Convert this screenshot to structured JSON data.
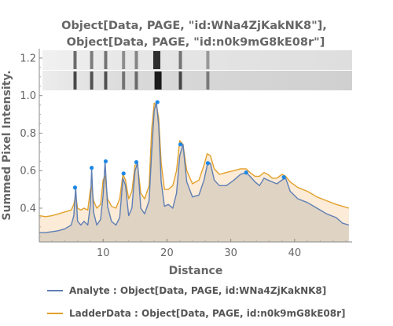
{
  "chart_data": {
    "type": "area",
    "title_lines": [
      "Object[Data, PAGE, \"id:WNa4ZjKakNK8\"],",
      "Object[Data, PAGE, \"id:n0k9mG8kE08r\"]"
    ],
    "xlabel": "Distance",
    "ylabel": "Summed Pixel Intensity.",
    "xlim": [
      0,
      49
    ],
    "ylim": [
      0.22,
      1.25
    ],
    "xticks": [
      10,
      20,
      30,
      40
    ],
    "yticks": [
      0.4,
      0.6,
      0.8,
      1.0,
      1.2
    ],
    "grid": false,
    "legend_position": "bottom",
    "series": [
      {
        "name": "Analyte : Object[Data, PAGE, id:WNa4ZjKakNK8]",
        "color": "#5f7fb5",
        "fill": "#d9cfbf",
        "x": [
          0,
          1,
          2,
          3,
          4,
          5,
          5.4,
          5.7,
          6,
          6.5,
          7,
          7.6,
          8,
          8.2,
          8.5,
          9,
          9.6,
          10,
          10.3,
          10.7,
          11.3,
          12,
          12.6,
          13.1,
          13.5,
          14,
          14.5,
          15.0,
          15.4,
          15.9,
          16.5,
          17.2,
          17.6,
          18.0,
          18.35,
          18.7,
          19.1,
          19.6,
          20.2,
          20.9,
          21.5,
          22.0,
          22.5,
          23.1,
          24.0,
          25.0,
          25.8,
          26.3,
          26.8,
          27.4,
          28.2,
          29.3,
          30.5,
          31.5,
          32.4,
          33.0,
          33.8,
          34.5,
          35.2,
          35.8,
          36.5,
          37.2,
          38.0,
          38.6,
          39.3,
          40.5,
          42,
          43.5,
          45,
          46.5,
          47.5,
          48.5
        ],
        "y": [
          0.27,
          0.27,
          0.275,
          0.28,
          0.29,
          0.31,
          0.36,
          0.51,
          0.33,
          0.31,
          0.33,
          0.31,
          0.42,
          0.61,
          0.38,
          0.31,
          0.34,
          0.47,
          0.65,
          0.41,
          0.33,
          0.31,
          0.35,
          0.56,
          0.52,
          0.36,
          0.4,
          0.6,
          0.64,
          0.4,
          0.37,
          0.44,
          0.7,
          0.92,
          0.965,
          0.84,
          0.54,
          0.41,
          0.42,
          0.4,
          0.48,
          0.68,
          0.74,
          0.54,
          0.46,
          0.47,
          0.55,
          0.63,
          0.64,
          0.55,
          0.52,
          0.52,
          0.55,
          0.58,
          0.59,
          0.57,
          0.54,
          0.52,
          0.56,
          0.55,
          0.54,
          0.53,
          0.55,
          0.56,
          0.49,
          0.45,
          0.43,
          0.4,
          0.37,
          0.35,
          0.32,
          0.31
        ]
      },
      {
        "name": "LadderData : Object[Data, PAGE, id:n0k9mG8kE08r]",
        "color": "#e2a12b",
        "fill": "#fbe9d3",
        "x": [
          0,
          1,
          2,
          3,
          4,
          5,
          5.4,
          5.7,
          6,
          6.5,
          7,
          7.6,
          8,
          8.2,
          8.5,
          9,
          9.6,
          10,
          10.3,
          10.7,
          11.3,
          12,
          12.6,
          13.1,
          13.5,
          14,
          14.5,
          15.0,
          15.4,
          15.9,
          16.5,
          17.2,
          17.6,
          18.0,
          18.35,
          18.7,
          19.1,
          19.6,
          20.2,
          20.9,
          21.5,
          22.0,
          22.5,
          23.1,
          24.0,
          25.0,
          25.8,
          26.3,
          26.8,
          27.4,
          28.2,
          29.3,
          30.5,
          31.5,
          32.4,
          33.0,
          33.8,
          34.5,
          35.2,
          35.8,
          36.5,
          37.2,
          38.0,
          38.6,
          39.3,
          40.5,
          42,
          43.5,
          45,
          46.5,
          47.5,
          48.5
        ],
        "y": [
          0.36,
          0.355,
          0.36,
          0.37,
          0.38,
          0.39,
          0.42,
          0.47,
          0.4,
          0.39,
          0.4,
          0.39,
          0.5,
          0.52,
          0.44,
          0.4,
          0.42,
          0.55,
          0.57,
          0.45,
          0.41,
          0.4,
          0.45,
          0.58,
          0.55,
          0.45,
          0.49,
          0.63,
          0.63,
          0.48,
          0.45,
          0.52,
          0.82,
          0.96,
          0.95,
          0.88,
          0.64,
          0.5,
          0.5,
          0.52,
          0.6,
          0.76,
          0.74,
          0.6,
          0.53,
          0.55,
          0.63,
          0.69,
          0.68,
          0.61,
          0.58,
          0.59,
          0.6,
          0.61,
          0.61,
          0.59,
          0.57,
          0.57,
          0.59,
          0.58,
          0.56,
          0.56,
          0.58,
          0.57,
          0.54,
          0.51,
          0.49,
          0.46,
          0.44,
          0.42,
          0.41,
          0.4
        ]
      }
    ],
    "peaks": [
      {
        "x": 5.6,
        "y": 0.51
      },
      {
        "x": 8.2,
        "y": 0.615
      },
      {
        "x": 10.4,
        "y": 0.65
      },
      {
        "x": 13.2,
        "y": 0.585
      },
      {
        "x": 15.2,
        "y": 0.645
      },
      {
        "x": 18.5,
        "y": 0.965
      },
      {
        "x": 22.1,
        "y": 0.74
      },
      {
        "x": 26.4,
        "y": 0.64
      },
      {
        "x": 32.4,
        "y": 0.59
      },
      {
        "x": 38.3,
        "y": 0.565
      }
    ],
    "peak_color": "#1e88e5",
    "gel_lanes": {
      "y_range": [
        1.0,
        1.25
      ],
      "bands_x": [
        [
          5.6,
          8.2,
          10.4,
          13.2,
          15.2,
          18.4,
          22.1,
          26.4
        ],
        [
          5.6,
          8.2,
          10.4,
          13.2,
          15.2,
          18.6,
          22.1,
          26.4
        ]
      ],
      "band_strength": [
        [
          0.55,
          0.45,
          0.5,
          0.35,
          0.4,
          0.9,
          0.5,
          0.3
        ],
        [
          0.75,
          0.7,
          0.7,
          0.5,
          0.55,
          1.0,
          0.75,
          0.45
        ]
      ]
    }
  }
}
